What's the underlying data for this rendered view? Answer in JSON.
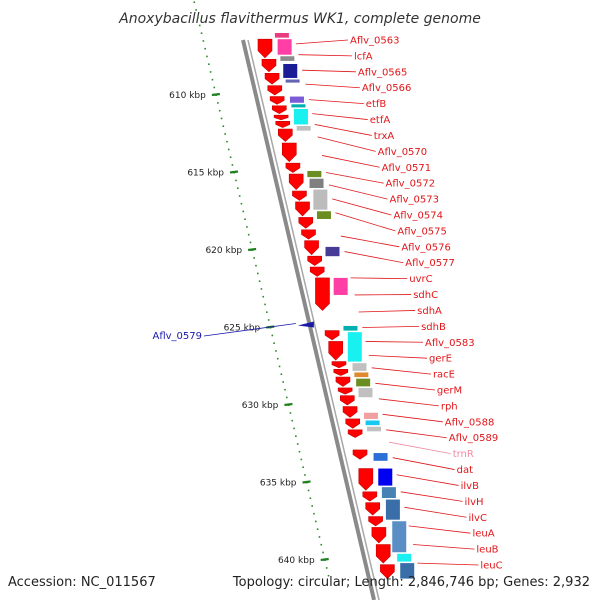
{
  "title": "Anoxybacillus flavithermus WK1, complete genome",
  "footer": {
    "accession": "Accession: NC_011567",
    "summary": "Topology: circular; Length: 2,846,746 bp; Genes: 2,932"
  },
  "colors": {
    "label_red": "#e0161a",
    "label_pink": "#f08aa0",
    "label_blue": "#1a1aa8",
    "backbone": "#8a8a8a",
    "forward_strand": "#ff0000",
    "tick_green": "#208020"
  },
  "axis": {
    "unit": "kbp",
    "ticks": [
      {
        "value": 610,
        "label": "610 kbp"
      },
      {
        "value": 615,
        "label": "615 kbp"
      },
      {
        "value": 620,
        "label": "620 kbp"
      },
      {
        "value": 625,
        "label": "625 kbp"
      },
      {
        "value": 630,
        "label": "630 kbp"
      },
      {
        "value": 635,
        "label": "635 kbp"
      },
      {
        "value": 640,
        "label": "640 kbp"
      }
    ]
  },
  "left_gene": {
    "label": "Aflv_0579",
    "pos": 625.0,
    "color": "#1a1aa8"
  },
  "right_genes": [
    {
      "label": "Aflv_0563",
      "pos": 606.7,
      "color": "#e0161a"
    },
    {
      "label": "lcfA",
      "pos": 607.4,
      "color": "#e0161a"
    },
    {
      "label": "Aflv_0565",
      "pos": 608.4,
      "color": "#e0161a"
    },
    {
      "label": "Aflv_0566",
      "pos": 609.3,
      "color": "#e0161a"
    },
    {
      "label": "etfB",
      "pos": 610.3,
      "color": "#e0161a"
    },
    {
      "label": "etfA",
      "pos": 611.2,
      "color": "#e0161a"
    },
    {
      "label": "trxA",
      "pos": 611.9,
      "color": "#e0161a"
    },
    {
      "label": "Aflv_0570",
      "pos": 612.7,
      "color": "#e0161a"
    },
    {
      "label": "Aflv_0571",
      "pos": 613.9,
      "color": "#e0161a"
    },
    {
      "label": "Aflv_0572",
      "pos": 615.0,
      "color": "#e0161a"
    },
    {
      "label": "Aflv_0573",
      "pos": 615.8,
      "color": "#e0161a"
    },
    {
      "label": "Aflv_0574",
      "pos": 616.7,
      "color": "#e0161a"
    },
    {
      "label": "Aflv_0575",
      "pos": 617.6,
      "color": "#e0161a"
    },
    {
      "label": "Aflv_0576",
      "pos": 619.1,
      "color": "#e0161a"
    },
    {
      "label": "Aflv_0577",
      "pos": 620.1,
      "color": "#e0161a"
    },
    {
      "label": "uvrC",
      "pos": 621.8,
      "color": "#e0161a"
    },
    {
      "label": "sdhC",
      "pos": 622.9,
      "color": "#e0161a"
    },
    {
      "label": "sdhA",
      "pos": 624.0,
      "color": "#e0161a"
    },
    {
      "label": "sdhB",
      "pos": 625.0,
      "color": "#e0161a"
    },
    {
      "label": "Aflv_0583",
      "pos": 625.9,
      "color": "#e0161a"
    },
    {
      "label": "gerE",
      "pos": 626.8,
      "color": "#e0161a"
    },
    {
      "label": "racE",
      "pos": 627.6,
      "color": "#e0161a"
    },
    {
      "label": "gerM",
      "pos": 628.6,
      "color": "#e0161a"
    },
    {
      "label": "rph",
      "pos": 629.6,
      "color": "#e0161a"
    },
    {
      "label": "Aflv_0588",
      "pos": 630.6,
      "color": "#e0161a"
    },
    {
      "label": "Aflv_0589",
      "pos": 631.6,
      "color": "#e0161a"
    },
    {
      "label": "trnR",
      "pos": 632.4,
      "color": "#f08aa0"
    },
    {
      "label": "dat",
      "pos": 633.4,
      "color": "#e0161a"
    },
    {
      "label": "ilvB",
      "pos": 634.5,
      "color": "#e0161a"
    },
    {
      "label": "ilvH",
      "pos": 635.6,
      "color": "#e0161a"
    },
    {
      "label": "ilvC",
      "pos": 636.6,
      "color": "#e0161a"
    },
    {
      "label": "leuA",
      "pos": 637.8,
      "color": "#e0161a"
    },
    {
      "label": "leuB",
      "pos": 639.0,
      "color": "#e0161a"
    },
    {
      "label": "leuC",
      "pos": 640.2,
      "color": "#e0161a"
    }
  ],
  "forward_genes": [
    {
      "start": 606.4,
      "end": 607.6
    },
    {
      "start": 607.7,
      "end": 608.5
    },
    {
      "start": 608.6,
      "end": 609.3
    },
    {
      "start": 609.4,
      "end": 610.0
    },
    {
      "start": 610.1,
      "end": 610.6
    },
    {
      "start": 610.7,
      "end": 611.2
    },
    {
      "start": 611.3,
      "end": 611.6
    },
    {
      "start": 611.7,
      "end": 612.1
    },
    {
      "start": 612.2,
      "end": 613.0
    },
    {
      "start": 613.1,
      "end": 614.3
    },
    {
      "start": 614.4,
      "end": 615.0
    },
    {
      "start": 615.1,
      "end": 616.1
    },
    {
      "start": 616.2,
      "end": 616.8
    },
    {
      "start": 616.9,
      "end": 617.8
    },
    {
      "start": 617.9,
      "end": 618.6
    },
    {
      "start": 618.7,
      "end": 619.3
    },
    {
      "start": 619.4,
      "end": 620.3
    },
    {
      "start": 620.4,
      "end": 621.0
    },
    {
      "start": 621.1,
      "end": 621.7
    },
    {
      "start": 621.8,
      "end": 623.9
    },
    {
      "start": 625.2,
      "end": 625.8
    },
    {
      "start": 625.9,
      "end": 627.1
    },
    {
      "start": 627.2,
      "end": 627.6
    },
    {
      "start": 627.7,
      "end": 628.1
    },
    {
      "start": 628.2,
      "end": 628.8
    },
    {
      "start": 628.9,
      "end": 629.3
    },
    {
      "start": 629.4,
      "end": 630.0
    },
    {
      "start": 630.1,
      "end": 630.8
    },
    {
      "start": 630.9,
      "end": 631.5
    },
    {
      "start": 631.6,
      "end": 632.1
    },
    {
      "start": 632.9,
      "end": 633.5
    },
    {
      "start": 634.1,
      "end": 635.5
    },
    {
      "start": 635.6,
      "end": 636.2
    },
    {
      "start": 636.3,
      "end": 637.1
    },
    {
      "start": 637.2,
      "end": 637.8
    },
    {
      "start": 637.9,
      "end": 638.9
    },
    {
      "start": 639.0,
      "end": 640.2
    },
    {
      "start": 640.3,
      "end": 641.2
    }
  ],
  "reverse_genes": [
    {
      "start": 606.0,
      "end": 606.3,
      "color": "#e83c7e"
    },
    {
      "start": 606.4,
      "end": 607.4,
      "color": "#ff3ea6"
    },
    {
      "start": 607.5,
      "end": 607.8,
      "color": "#8c8c8c"
    },
    {
      "start": 608.0,
      "end": 608.9,
      "color": "#1c1c96"
    },
    {
      "start": 609.0,
      "end": 609.2,
      "color": "#6464b4"
    },
    {
      "start": 610.1,
      "end": 610.5,
      "color": "#7b5cd6"
    },
    {
      "start": 610.6,
      "end": 610.8,
      "color": "#00b0b0"
    },
    {
      "start": 610.9,
      "end": 611.9,
      "color": "#19f0f0"
    },
    {
      "start": 612.0,
      "end": 612.3,
      "color": "#c0c0c0"
    },
    {
      "start": 614.9,
      "end": 615.3,
      "color": "#6b8e23"
    },
    {
      "start": 615.4,
      "end": 616.0,
      "color": "#808080"
    },
    {
      "start": 616.1,
      "end": 617.4,
      "color": "#bcbcbc"
    },
    {
      "start": 617.5,
      "end": 618.0,
      "color": "#6b8e23"
    },
    {
      "start": 619.8,
      "end": 620.4,
      "color": "#463c96"
    },
    {
      "start": 621.8,
      "end": 622.9,
      "color": "#ff3ea6"
    },
    {
      "start": 624.9,
      "end": 625.2,
      "color": "#00b0b0"
    },
    {
      "start": 625.3,
      "end": 627.2,
      "color": "#19f0f0"
    },
    {
      "start": 627.3,
      "end": 627.8,
      "color": "#c0c0c0"
    },
    {
      "start": 627.9,
      "end": 628.2,
      "color": "#e08a2e"
    },
    {
      "start": 628.3,
      "end": 628.8,
      "color": "#6b8e23"
    },
    {
      "start": 628.9,
      "end": 629.5,
      "color": "#c0c0c0"
    },
    {
      "start": 630.5,
      "end": 630.9,
      "color": "#f0a0a0"
    },
    {
      "start": 631.0,
      "end": 631.3,
      "color": "#19c8f0"
    },
    {
      "start": 631.4,
      "end": 631.7,
      "color": "#c0c0c0"
    },
    {
      "start": 633.1,
      "end": 633.6,
      "color": "#2b6ed6"
    },
    {
      "start": 634.1,
      "end": 635.2,
      "color": "#0000f0"
    },
    {
      "start": 635.3,
      "end": 636.0,
      "color": "#4682b4"
    },
    {
      "start": 636.1,
      "end": 637.4,
      "color": "#3a6ea8"
    },
    {
      "start": 637.5,
      "end": 639.5,
      "color": "#5a8ec4"
    },
    {
      "start": 639.6,
      "end": 640.1,
      "color": "#19f0f0"
    },
    {
      "start": 640.2,
      "end": 641.2,
      "color": "#3a6ea8"
    }
  ]
}
